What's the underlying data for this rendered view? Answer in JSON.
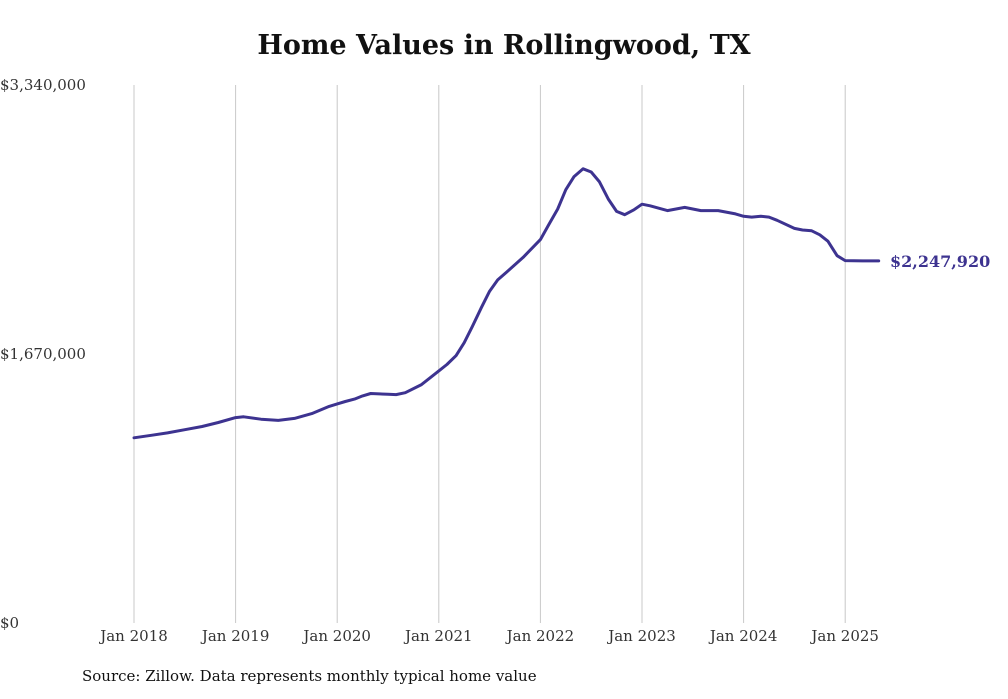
{
  "chart_data": {
    "type": "line",
    "title": "Home Values in Rollingwood, TX",
    "xlabel": "",
    "ylabel": "",
    "ylim": [
      0,
      3340000
    ],
    "y_tick_labels": [
      "$0",
      "$1,670,000",
      "$3,340,000"
    ],
    "y_tick_values": [
      0,
      1670000,
      3340000
    ],
    "x_tick_labels": [
      "Jan 2018",
      "Jan 2019",
      "Jan 2020",
      "Jan 2021",
      "Jan 2022",
      "Jan 2023",
      "Jan 2024",
      "Jan 2025"
    ],
    "x_tick_values": [
      2018.0,
      2019.0,
      2020.0,
      2021.0,
      2022.0,
      2023.0,
      2024.0,
      2025.0
    ],
    "xlim": [
      2018.0,
      2025.33
    ],
    "grid": "vertical",
    "color": "#3d3390",
    "end_label": "$2,247,920",
    "series": [
      {
        "x": [
          2018.0,
          2018.17,
          2018.33,
          2018.5,
          2018.67,
          2018.83,
          2019.0,
          2019.08,
          2019.25,
          2019.42,
          2019.58,
          2019.75,
          2019.92,
          2020.0,
          2020.08,
          2020.17,
          2020.25,
          2020.33,
          2020.5,
          2020.58,
          2020.67,
          2020.83,
          2021.0,
          2021.08,
          2021.17,
          2021.25,
          2021.33,
          2021.42,
          2021.5,
          2021.58,
          2021.67,
          2021.83,
          2022.0,
          2022.08,
          2022.17,
          2022.25,
          2022.33,
          2022.42,
          2022.5,
          2022.58,
          2022.67,
          2022.75,
          2022.83,
          2022.92,
          2023.0,
          2023.08,
          2023.25,
          2023.42,
          2023.58,
          2023.75,
          2023.92,
          2024.0,
          2024.08,
          2024.17,
          2024.25,
          2024.33,
          2024.5,
          2024.58,
          2024.67,
          2024.75,
          2024.83,
          2024.92,
          2025.0,
          2025.17,
          2025.33
        ],
        "y": [
          1150000,
          1165000,
          1180000,
          1200000,
          1220000,
          1245000,
          1275000,
          1280000,
          1265000,
          1258000,
          1270000,
          1300000,
          1345000,
          1360000,
          1375000,
          1390000,
          1410000,
          1425000,
          1420000,
          1418000,
          1430000,
          1480000,
          1565000,
          1605000,
          1660000,
          1740000,
          1840000,
          1960000,
          2060000,
          2130000,
          2180000,
          2270000,
          2380000,
          2470000,
          2570000,
          2690000,
          2770000,
          2820000,
          2800000,
          2740000,
          2630000,
          2555000,
          2535000,
          2565000,
          2600000,
          2590000,
          2560000,
          2580000,
          2560000,
          2560000,
          2540000,
          2525000,
          2520000,
          2525000,
          2520000,
          2500000,
          2450000,
          2440000,
          2435000,
          2410000,
          2370000,
          2280000,
          2250000,
          2247920,
          2247920
        ]
      }
    ]
  },
  "footer": {
    "source": "Source: Zillow. Data represents monthly typical home value"
  }
}
